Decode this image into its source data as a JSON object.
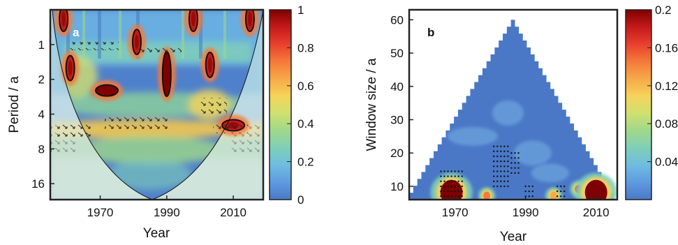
{
  "chart_data": [
    {
      "type": "heatmap",
      "panel_label": "a",
      "xlabel": "Year",
      "ylabel": "Period / a",
      "xlim": [
        1955,
        2019
      ],
      "ylim": [
        0.5,
        22
      ],
      "y_scale": "log2",
      "y_reversed": true,
      "x_ticks": [
        1970,
        1990,
        2010
      ],
      "x_tick_labels": [
        "1970",
        "1990",
        "2010"
      ],
      "y_ticks": [
        1,
        2,
        4,
        8,
        16
      ],
      "y_tick_labels": [
        "1",
        "2",
        "4",
        "8",
        "16"
      ],
      "colorbar": {
        "min": 0,
        "max": 1,
        "ticks": [
          0,
          0.2,
          0.4,
          0.6,
          0.8,
          1
        ],
        "tick_labels": [
          "0",
          "0.2",
          "0.4",
          "0.6",
          "0.8",
          "1"
        ],
        "colors": [
          "#4a78c6",
          "#5f9be0",
          "#6fbce0",
          "#7fcfb8",
          "#9fd88a",
          "#cfe070",
          "#f5d35a",
          "#f7a948",
          "#f47a3a",
          "#e8402e",
          "#c41a1a",
          "#7f0000"
        ]
      },
      "cone_of_influence": true,
      "significant_regions": [
        {
          "year": 1959,
          "period": 0.6,
          "power": 0.95
        },
        {
          "year": 1961,
          "period": 1.6,
          "power": 0.9
        },
        {
          "year": 1972,
          "period": 2.5,
          "power": 0.97
        },
        {
          "year": 1981,
          "period": 0.95,
          "power": 0.95
        },
        {
          "year": 1990,
          "period": 1.8,
          "power": 0.97
        },
        {
          "year": 1998,
          "period": 0.6,
          "power": 0.9
        },
        {
          "year": 2003,
          "period": 1.5,
          "power": 0.9
        },
        {
          "year": 2010,
          "period": 5.0,
          "power": 0.95
        },
        {
          "year": 2015,
          "period": 0.6,
          "power": 0.95
        }
      ]
    },
    {
      "type": "heatmap",
      "panel_label": "b",
      "xlabel": "Year",
      "ylabel": "Window size / a",
      "xlim": [
        1957,
        2016
      ],
      "ylim": [
        6,
        63
      ],
      "x_ticks": [
        1970,
        1990,
        2010
      ],
      "x_tick_labels": [
        "1970",
        "1990",
        "2010"
      ],
      "y_ticks": [
        10,
        20,
        30,
        40,
        50,
        60
      ],
      "y_tick_labels": [
        "10",
        "20",
        "30",
        "40",
        "50",
        "60"
      ],
      "colorbar": {
        "min": 0,
        "max": 0.2,
        "ticks": [
          0.04,
          0.08,
          0.12,
          0.16,
          0.2
        ],
        "tick_labels": [
          "0.04",
          "0.08",
          "0.12",
          "0.16",
          "0.2"
        ],
        "colors": [
          "#4a78c6",
          "#5f9be0",
          "#6fbce0",
          "#7fcfb8",
          "#9fd88a",
          "#cfe070",
          "#f5d35a",
          "#f7a948",
          "#f47a3a",
          "#e8402e",
          "#c41a1a",
          "#7f0000"
        ]
      },
      "triangle": {
        "apex_year": 1987,
        "apex_window": 60,
        "base_start": 1957,
        "base_end": 2016,
        "base_window": 6
      },
      "hotspots": [
        {
          "year": 1969,
          "window": 9,
          "value": 0.2
        },
        {
          "year": 1979,
          "window": 8,
          "value": 0.14
        },
        {
          "year": 1998,
          "window": 8,
          "value": 0.12
        },
        {
          "year": 2005,
          "window": 10,
          "value": 0.16
        },
        {
          "year": 2010,
          "window": 9,
          "value": 0.2
        }
      ]
    }
  ]
}
